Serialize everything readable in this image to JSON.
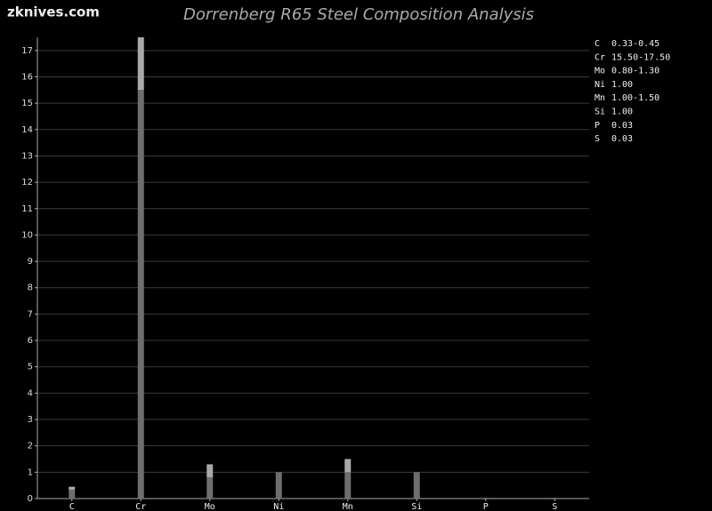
{
  "chart_data": {
    "type": "range-bar",
    "site": "zknives.com",
    "title": "Dorrenberg R65 Steel Composition Analysis",
    "categories": [
      "C",
      "Cr",
      "Mo",
      "Ni",
      "Mn",
      "Si",
      "P",
      "S"
    ],
    "low": [
      0.33,
      15.5,
      0.8,
      1.0,
      1.0,
      1.0,
      0.03,
      0.03
    ],
    "high": [
      0.45,
      17.5,
      1.3,
      null,
      1.5,
      null,
      null,
      null
    ],
    "value_labels": [
      "0.33-0.45",
      "15.50-17.50",
      "0.80-1.30",
      "1.00",
      "1.00-1.50",
      "1.00",
      "0.03",
      "0.03"
    ],
    "colors": [
      "#6e6e6e",
      "#a8a8a8"
    ],
    "ylim": [
      0,
      17.5
    ],
    "yticks": [
      0,
      1,
      2,
      3,
      4,
      5,
      6,
      7,
      8,
      9,
      10,
      11,
      12,
      13,
      14,
      15,
      16,
      17
    ],
    "grid": true
  }
}
